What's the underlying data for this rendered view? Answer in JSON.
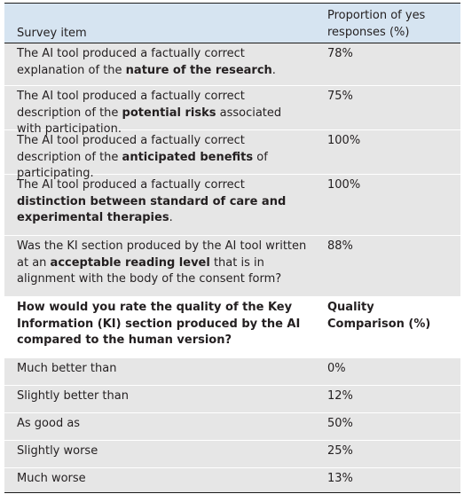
{
  "header": {
    "col1": "Survey item",
    "col2": "Proportion of yes responses (%)"
  },
  "rows": [
    {
      "pre": "The AI tool produced a factually correct explanation of the ",
      "bold": "nature of the research",
      "post": ".",
      "value": "78%"
    },
    {
      "pre": "The AI tool produced a factually correct description of the ",
      "bold": "potential risks",
      "post": " associated with participation.",
      "value": "75%"
    },
    {
      "pre": "The AI tool produced a factually correct description of the ",
      "bold": "anticipated benefits",
      "post": " of participating.",
      "value": "100%"
    },
    {
      "pre": "The AI tool produced a factually correct ",
      "bold": "distinction between standard of care and experimental therapies",
      "post": ".",
      "value": "100%"
    },
    {
      "pre": "Was the KI section produced by the AI tool written at an ",
      "bold": "acceptable reading level",
      "post": " that is in alignment with the body of the consent form?",
      "value": "88%"
    }
  ],
  "subheader": {
    "question": "How would you rate the quality of the Key Information (KI) section produced by the AI compared to the human version?",
    "value_header": "Quality Comparison (%)"
  },
  "ratings": [
    {
      "label": "Much better than",
      "value": "0%"
    },
    {
      "label": "Slightly better than",
      "value": "12%"
    },
    {
      "label": "As good as",
      "value": "50%"
    },
    {
      "label": "Slightly worse",
      "value": "25%"
    },
    {
      "label": "Much worse",
      "value": "13%"
    }
  ]
}
